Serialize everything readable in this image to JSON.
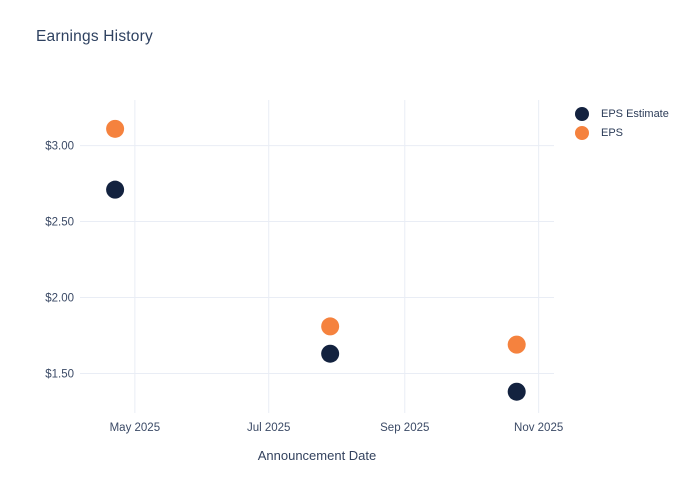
{
  "title": "Earnings History",
  "legend": {
    "items": [
      {
        "label": "EPS Estimate",
        "color": "#13223f"
      },
      {
        "label": "EPS",
        "color": "#f5823e"
      }
    ]
  },
  "chart_data": {
    "type": "scatter",
    "title": "Earnings History",
    "xlabel": "Announcement Date",
    "ylabel": "",
    "x": [
      "2025-04-22",
      "2025-07-29",
      "2025-10-22"
    ],
    "series": [
      {
        "name": "EPS Estimate",
        "color": "#13223f",
        "values": [
          2.71,
          1.63,
          1.38
        ]
      },
      {
        "name": "EPS",
        "color": "#f5823e",
        "values": [
          3.11,
          1.81,
          1.69
        ]
      }
    ],
    "xticks": [
      {
        "date": "2025-05-01",
        "label": "May 2025"
      },
      {
        "date": "2025-07-01",
        "label": "Jul 2025"
      },
      {
        "date": "2025-09-01",
        "label": "Sep 2025"
      },
      {
        "date": "2025-11-01",
        "label": "Nov 2025"
      }
    ],
    "yticks": [
      {
        "value": 3.0,
        "label": "$3.00"
      },
      {
        "value": 2.5,
        "label": "$2.50"
      },
      {
        "value": 2.0,
        "label": "$2.00"
      },
      {
        "value": 1.5,
        "label": "$1.50"
      }
    ],
    "xlim": [
      "2025-04-06",
      "2025-11-08"
    ],
    "ylim": [
      1.24,
      3.3
    ],
    "grid": true,
    "legend_position": "top-right",
    "marker_size": 18
  },
  "colors": {
    "background": "#ffffff",
    "grid": "#e9edf5",
    "title_text": "#2e4160",
    "tick_text": "#3b4a66",
    "axis_title_text": "#33425e",
    "legend_text": "#2c3c58"
  }
}
